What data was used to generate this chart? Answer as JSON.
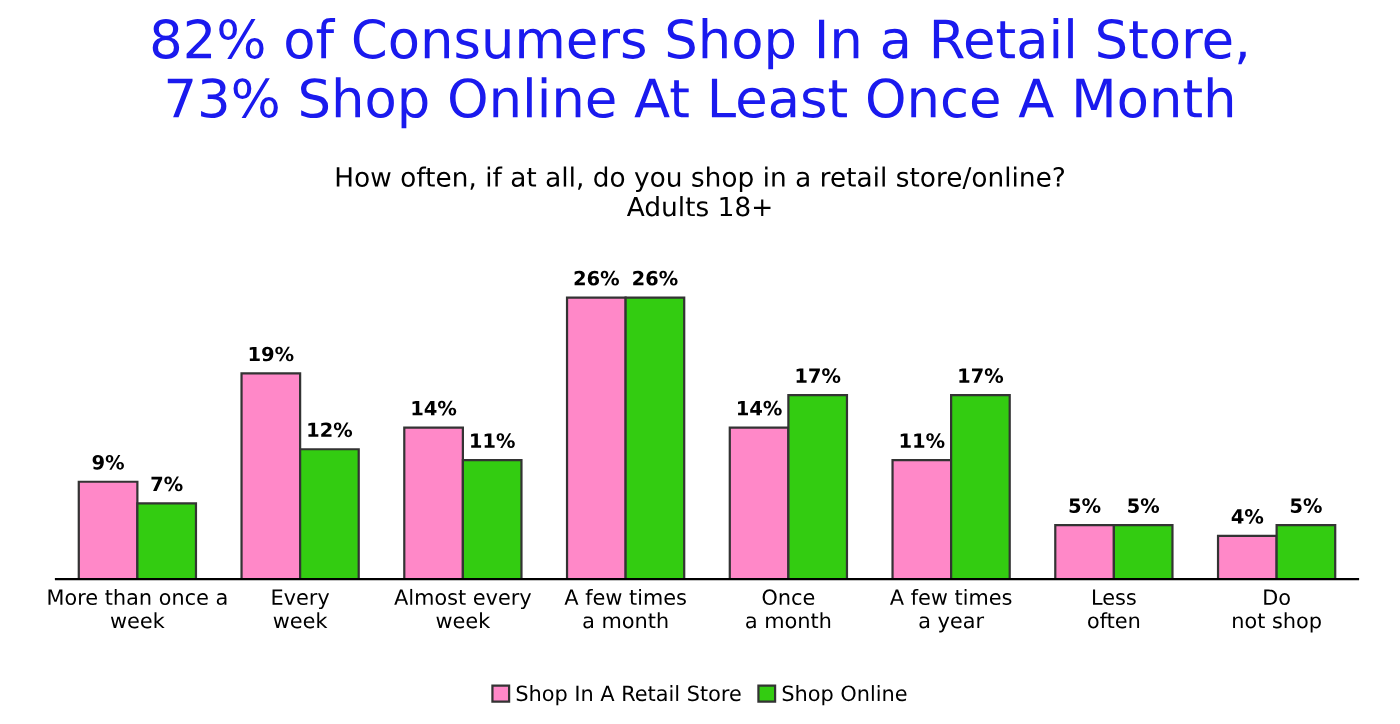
{
  "chart_data": {
    "type": "bar",
    "title": "82% of Consumers Shop In a Retail Store,\n73% Shop Online At Least Once A Month",
    "subtitle": "How often, if at all, do you shop in a retail store/online?\nAdults 18+",
    "categories": [
      "More than once a\nweek",
      "Every\nweek",
      "Almost every\nweek",
      "A few times\na month",
      "Once\na month",
      "A few times\na year",
      "Less\noften",
      "Do\nnot shop"
    ],
    "series": [
      {
        "name": "Shop In A Retail Store",
        "color": "#ff88c8",
        "values": [
          9,
          19,
          14,
          26,
          14,
          11,
          5,
          4
        ],
        "value_labels": [
          "9%",
          "19%",
          "14%",
          "26%",
          "14%",
          "11%",
          "5%",
          "4%"
        ]
      },
      {
        "name": "Shop Online",
        "color": "#33cc11",
        "values": [
          7,
          12,
          11,
          26,
          17,
          17,
          5,
          5
        ],
        "value_labels": [
          "7%",
          "12%",
          "11%",
          "26%",
          "17%",
          "17%",
          "5%",
          "5%"
        ]
      }
    ],
    "legend": "bottom",
    "grid": false
  }
}
